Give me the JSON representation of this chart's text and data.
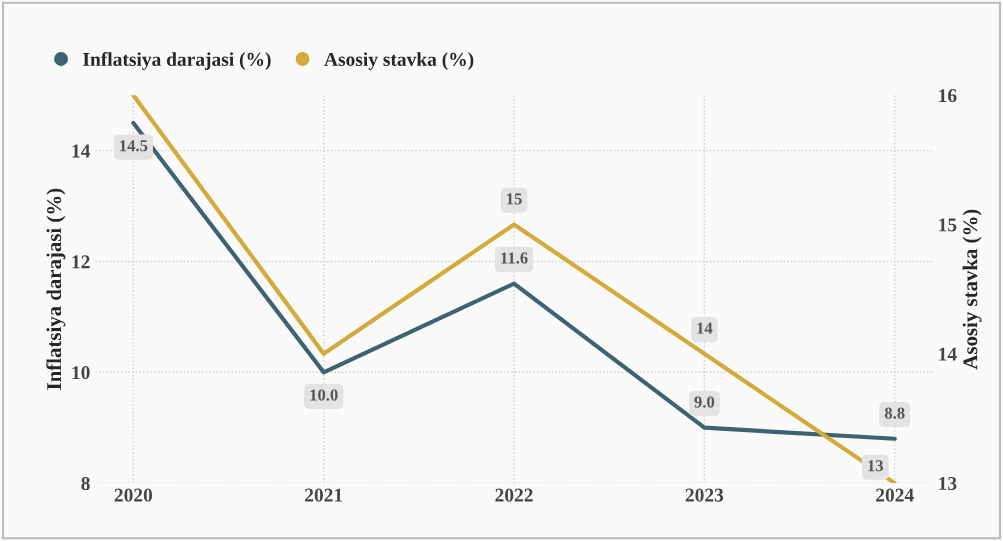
{
  "chart_data": {
    "type": "line",
    "categories": [
      "2020",
      "2021",
      "2022",
      "2023",
      "2024"
    ],
    "ylabel": "Inflatsiya darajasi (%)",
    "y2label": "Asosiy stavka (%)",
    "ylim": [
      8,
      15
    ],
    "yticks": [
      8,
      10,
      12,
      14
    ],
    "y2lim": [
      13,
      16
    ],
    "y2ticks": [
      13,
      14,
      15,
      16
    ],
    "grid": true,
    "legend": "top left",
    "marker": "none",
    "line_style": "solid",
    "series": [
      {
        "name": "Inflatsiya darajasi (%)",
        "color": "#3d6370",
        "values": [
          14.5,
          10.0,
          11.6,
          9.0,
          8.8
        ],
        "value_labels": [
          "14.5",
          "10.0",
          "11.6",
          "9.0",
          "8.8"
        ]
      },
      {
        "name": "Asosiy stavka (%)",
        "color": "#d4aa3a",
        "axis": "y2",
        "values": [
          16,
          14,
          15,
          14,
          13
        ],
        "value_labels": [
          null,
          null,
          "15",
          "14",
          "13"
        ]
      }
    ]
  }
}
